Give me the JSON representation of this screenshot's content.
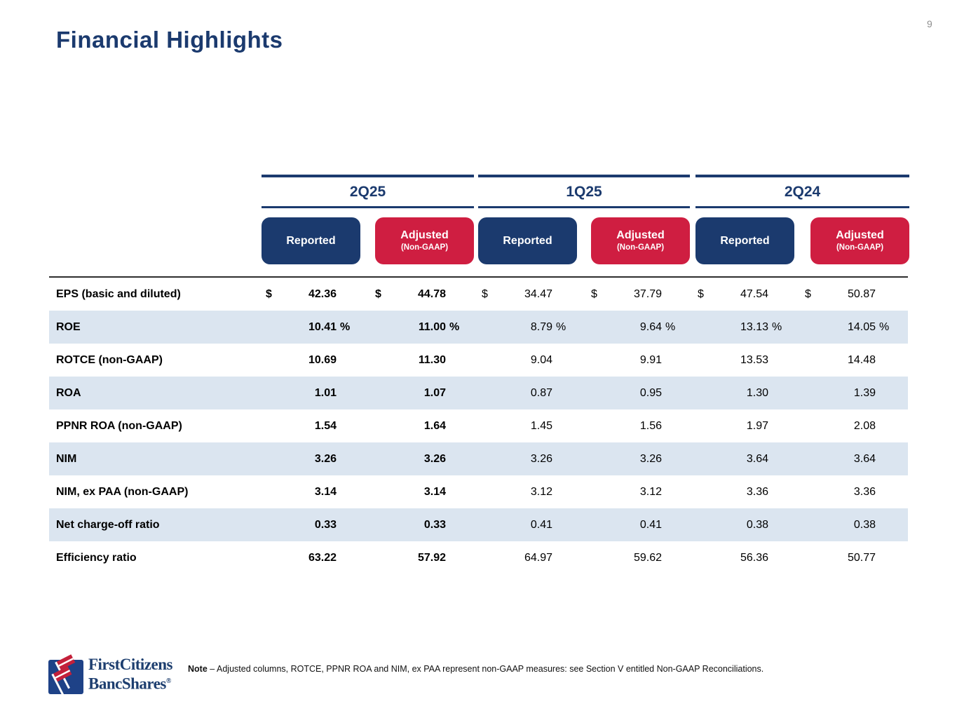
{
  "page": {
    "number": "9"
  },
  "title": "Financial Highlights",
  "colors": {
    "navy": "#1b3a6e",
    "red": "#cf1e41",
    "row_stripe": "#dbe5f0",
    "logo_blue": "#1e4287",
    "logo_red": "#c4203a"
  },
  "header": {
    "groups": [
      {
        "label": "2Q25",
        "reported": "Reported",
        "adjusted": "Adjusted",
        "adjusted_sub": "(Non-GAAP)"
      },
      {
        "label": "1Q25",
        "reported": "Reported",
        "adjusted": "Adjusted",
        "adjusted_sub": "(Non-GAAP)"
      },
      {
        "label": "2Q24",
        "reported": "Reported",
        "adjusted": "Adjusted",
        "adjusted_sub": "(Non-GAAP)"
      }
    ]
  },
  "table": {
    "rows": [
      {
        "label": "EPS (basic and diluted)",
        "prefix": "$",
        "suffix": "",
        "shaded": false,
        "cells": [
          "42.36",
          "44.78",
          "34.47",
          "37.79",
          "47.54",
          "50.87"
        ]
      },
      {
        "label": "ROE",
        "prefix": "",
        "suffix": "%",
        "shaded": true,
        "cells": [
          "10.41",
          "11.00",
          "8.79",
          "9.64",
          "13.13",
          "14.05"
        ]
      },
      {
        "label": "ROTCE (non-GAAP)",
        "prefix": "",
        "suffix": "",
        "shaded": false,
        "cells": [
          "10.69",
          "11.30",
          "9.04",
          "9.91",
          "13.53",
          "14.48"
        ]
      },
      {
        "label": "ROA",
        "prefix": "",
        "suffix": "",
        "shaded": true,
        "cells": [
          "1.01",
          "1.07",
          "0.87",
          "0.95",
          "1.30",
          "1.39"
        ]
      },
      {
        "label": "PPNR ROA (non-GAAP)",
        "prefix": "",
        "suffix": "",
        "shaded": false,
        "cells": [
          "1.54",
          "1.64",
          "1.45",
          "1.56",
          "1.97",
          "2.08"
        ]
      },
      {
        "label": "NIM",
        "prefix": "",
        "suffix": "",
        "shaded": true,
        "cells": [
          "3.26",
          "3.26",
          "3.26",
          "3.26",
          "3.64",
          "3.64"
        ]
      },
      {
        "label": "NIM, ex PAA (non-GAAP)",
        "prefix": "",
        "suffix": "",
        "shaded": false,
        "cells": [
          "3.14",
          "3.14",
          "3.12",
          "3.12",
          "3.36",
          "3.36"
        ]
      },
      {
        "label": "Net charge-off ratio",
        "prefix": "",
        "suffix": "",
        "shaded": true,
        "cells": [
          "0.33",
          "0.33",
          "0.41",
          "0.41",
          "0.38",
          "0.38"
        ]
      },
      {
        "label": "Efficiency ratio",
        "prefix": "",
        "suffix": "",
        "shaded": false,
        "cells": [
          "63.22",
          "57.92",
          "64.97",
          "59.62",
          "56.36",
          "50.77"
        ]
      }
    ]
  },
  "footer": {
    "logo_line1": "FirstCitizens",
    "logo_line2": "BancShares",
    "logo_reg": "®",
    "note_label": "Note",
    "note_text": "–  Adjusted columns, ROTCE, PPNR ROA and NIM, ex PAA represent non-GAAP measures: see Section V entitled Non-GAAP Reconciliations."
  }
}
